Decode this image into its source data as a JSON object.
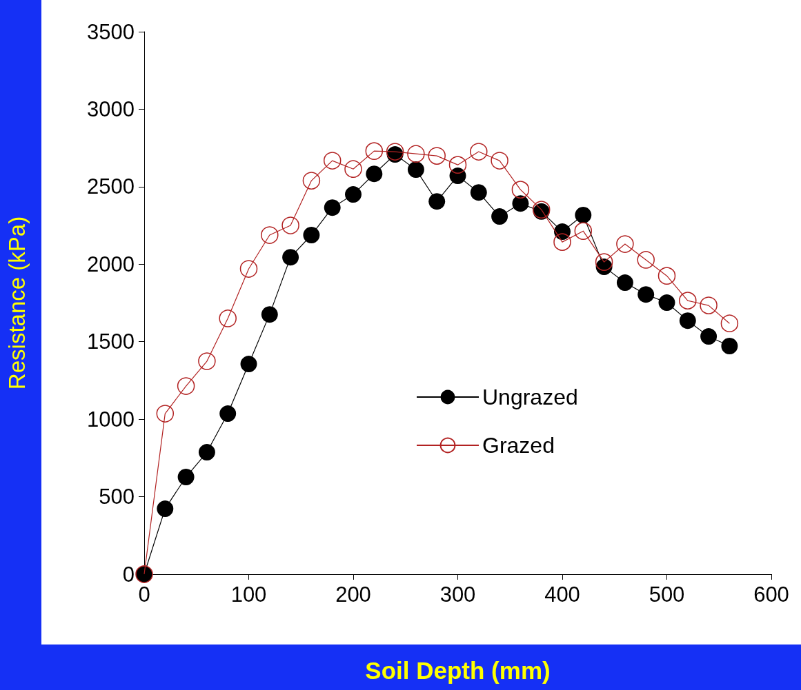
{
  "chart_data": {
    "type": "line",
    "xlabel": "Soil Depth (mm)",
    "ylabel": "Resistance (kPa)",
    "x": [
      0,
      20,
      40,
      60,
      80,
      100,
      120,
      140,
      160,
      180,
      200,
      220,
      240,
      260,
      280,
      300,
      320,
      340,
      360,
      380,
      400,
      420,
      440,
      460,
      480,
      500,
      520,
      540,
      560
    ],
    "series": [
      {
        "name": "Ungrazed",
        "color": "#000000",
        "values": [
          0,
          422,
          627,
          787,
          1036,
          1356,
          1676,
          2045,
          2188,
          2365,
          2450,
          2583,
          2708,
          2610,
          2405,
          2570,
          2463,
          2308,
          2392,
          2340,
          2210,
          2317,
          1983,
          1881,
          1805,
          1752,
          1636,
          1534,
          1472
        ]
      },
      {
        "name": "Grazed",
        "color": "#b22222",
        "values": [
          0,
          1036,
          1214,
          1374,
          1650,
          1970,
          2188,
          2250,
          2539,
          2668,
          2614,
          2730,
          2726,
          2712,
          2699,
          2641,
          2726,
          2668,
          2481,
          2352,
          2143,
          2214,
          2014,
          2130,
          2028,
          1925,
          1765,
          1734,
          1618
        ]
      }
    ],
    "xlim": [
      0,
      600
    ],
    "xticks": [
      0,
      100,
      200,
      300,
      400,
      500,
      600
    ],
    "ylim": [
      0,
      3500
    ],
    "yticks": [
      0,
      500,
      1000,
      1500,
      2000,
      2500,
      3000,
      3500
    ],
    "grid": false,
    "legend": "right",
    "marker": "circle",
    "line_style": "solid"
  }
}
